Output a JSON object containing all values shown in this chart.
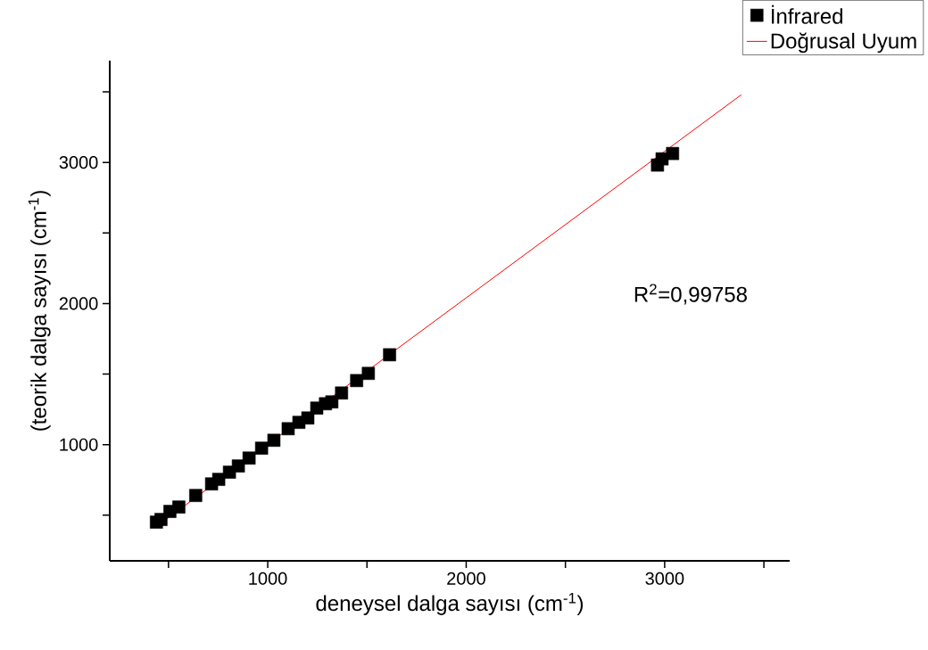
{
  "chart_data": {
    "type": "scatter",
    "xlabel": "deneysel dalga sayısı (cm$^{-1}$)",
    "ylabel": "(teorik dalga sayısı (cm$^{-1}$)",
    "annotations": [
      "R$^{2}$=0,99758"
    ],
    "xlim": [
      204,
      3630
    ],
    "ylim": [
      177,
      3721
    ],
    "xticks": [
      {
        "value": 500,
        "label": null
      },
      1000,
      {
        "value": 1500,
        "label": null
      },
      2000,
      {
        "value": 2500,
        "label": null
      },
      3000,
      {
        "value": 3500,
        "label": null
      }
    ],
    "yticks": [
      {
        "value": 500,
        "label": null
      },
      1000,
      {
        "value": 1500,
        "label": null
      },
      2000,
      {
        "value": 2500,
        "label": null
      },
      3000,
      {
        "value": 3500,
        "label": null
      }
    ],
    "legend": "top right",
    "grid": false,
    "series": [
      {
        "name": "İnfrared",
        "marker": "square",
        "color": "#000000",
        "x": [
          439,
          462,
          507,
          552,
          637,
          717,
          753,
          807,
          852,
          906,
          969,
          1031,
          1103,
          1157,
          1202,
          1247,
          1291,
          1323,
          1372,
          1448,
          1507,
          1614,
          2964,
          2987,
          3040
        ],
        "values": [
          451,
          470,
          527,
          558,
          640,
          722,
          754,
          805,
          849,
          905,
          975,
          1031,
          1113,
          1158,
          1189,
          1259,
          1290,
          1303,
          1366,
          1454,
          1505,
          1637,
          2981,
          3025,
          3063
        ]
      },
      {
        "name": "Doğrusal Uyum",
        "type": "line",
        "marker": "none",
        "line_style": "solid",
        "color": "#ff0000",
        "x": [
          439,
          3386
        ],
        "values": [
          420,
          3479
        ]
      }
    ]
  }
}
